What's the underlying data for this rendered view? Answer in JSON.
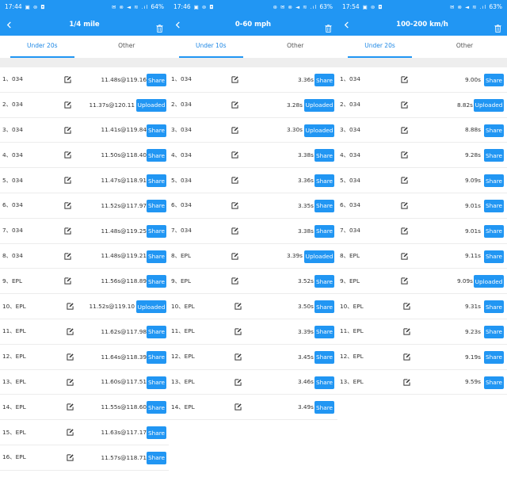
{
  "panels": [
    {
      "status": {
        "time": "17:44",
        "left_icons": "▣ ⊚ ◘",
        "right_icons": "✉ ⊗ ◄ ≋ .ıl",
        "battery": "64%"
      },
      "title": "1/4 mile",
      "tabs": [
        "Under 20s",
        "Other"
      ],
      "active_tab": 0,
      "rows": [
        {
          "idx": "1、034",
          "result": "11.48s@119.16",
          "action": "Share"
        },
        {
          "idx": "2、034",
          "result": "11.37s@120.11",
          "action": "Uploaded"
        },
        {
          "idx": "3、034",
          "result": "11.41s@119.84",
          "action": "Share"
        },
        {
          "idx": "4、034",
          "result": "11.50s@118.40",
          "action": "Share"
        },
        {
          "idx": "5、034",
          "result": "11.47s@118.91",
          "action": "Share"
        },
        {
          "idx": "6、034",
          "result": "11.52s@117.97",
          "action": "Share"
        },
        {
          "idx": "7、034",
          "result": "11.48s@119.25",
          "action": "Share"
        },
        {
          "idx": "8、034",
          "result": "11.48s@119.21",
          "action": "Share"
        },
        {
          "idx": "9、EPL",
          "result": "11.56s@118.89",
          "action": "Share"
        },
        {
          "idx": "10、EPL",
          "result": "11.52s@119.10",
          "action": "Uploaded"
        },
        {
          "idx": "11、EPL",
          "result": "11.62s@117.98",
          "action": "Share"
        },
        {
          "idx": "12、EPL",
          "result": "11.64s@118.39",
          "action": "Share"
        },
        {
          "idx": "13、EPL",
          "result": "11.60s@117.51",
          "action": "Share"
        },
        {
          "idx": "14、EPL",
          "result": "11.55s@118.60",
          "action": "Share"
        },
        {
          "idx": "15、EPL",
          "result": "11.63s@117.17",
          "action": "Share"
        },
        {
          "idx": "16、EPL",
          "result": "11.57s@118.71",
          "action": "Share"
        }
      ]
    },
    {
      "status": {
        "time": "17:46",
        "left_icons": "▣ ⊚ ◘",
        "right_icons": "⊛ ✉ ⊗ ◄ ≋ .ıl",
        "battery": "63%"
      },
      "title": "0-60 mph",
      "tabs": [
        "Under 10s",
        "Other"
      ],
      "active_tab": 0,
      "rows": [
        {
          "idx": "1、034",
          "result": "3.36s",
          "action": "Share"
        },
        {
          "idx": "2、034",
          "result": "3.28s",
          "action": "Uploaded"
        },
        {
          "idx": "3、034",
          "result": "3.30s",
          "action": "Uploaded"
        },
        {
          "idx": "4、034",
          "result": "3.38s",
          "action": "Share"
        },
        {
          "idx": "5、034",
          "result": "3.36s",
          "action": "Share"
        },
        {
          "idx": "6、034",
          "result": "3.35s",
          "action": "Share"
        },
        {
          "idx": "7、034",
          "result": "3.38s",
          "action": "Share"
        },
        {
          "idx": "8、EPL",
          "result": "3.39s",
          "action": "Uploaded"
        },
        {
          "idx": "9、EPL",
          "result": "3.52s",
          "action": "Share"
        },
        {
          "idx": "10、EPL",
          "result": "3.50s",
          "action": "Share"
        },
        {
          "idx": "11、EPL",
          "result": "3.39s",
          "action": "Share"
        },
        {
          "idx": "12、EPL",
          "result": "3.45s",
          "action": "Share"
        },
        {
          "idx": "13、EPL",
          "result": "3.46s",
          "action": "Share"
        },
        {
          "idx": "14、EPL",
          "result": "3.49s",
          "action": "Share"
        }
      ]
    },
    {
      "status": {
        "time": "17:54",
        "left_icons": "▣ ⊚ ◘",
        "right_icons": "✉ ⊗ ◄ ≋ .ıl",
        "battery": "63%"
      },
      "title": "100-200 km/h",
      "tabs": [
        "Under 20s",
        "Other"
      ],
      "active_tab": 0,
      "rows": [
        {
          "idx": "1、034",
          "result": "9.00s",
          "action": "Share"
        },
        {
          "idx": "2、034",
          "result": "8.82s",
          "action": "Uploaded"
        },
        {
          "idx": "3、034",
          "result": "8.88s",
          "action": "Share"
        },
        {
          "idx": "4、034",
          "result": "9.28s",
          "action": "Share"
        },
        {
          "idx": "5、034",
          "result": "9.09s",
          "action": "Share"
        },
        {
          "idx": "6、034",
          "result": "9.01s",
          "action": "Share"
        },
        {
          "idx": "7、034",
          "result": "9.01s",
          "action": "Share"
        },
        {
          "idx": "8、EPL",
          "result": "9.11s",
          "action": "Share"
        },
        {
          "idx": "9、EPL",
          "result": "9.09s",
          "action": "Uploaded"
        },
        {
          "idx": "10、EPL",
          "result": "9.31s",
          "action": "Share"
        },
        {
          "idx": "11、EPL",
          "result": "9.23s",
          "action": "Share"
        },
        {
          "idx": "12、EPL",
          "result": "9.19s",
          "action": "Share"
        },
        {
          "idx": "13、EPL",
          "result": "9.59s",
          "action": "Share"
        }
      ]
    }
  ],
  "colors": {
    "accent": "#2196f3",
    "tab_active": "#1e88e5",
    "divider": "#eeeeee"
  },
  "icons": {
    "back": "back-arrow-icon",
    "delete": "trash-icon",
    "edit": "edit-icon"
  }
}
